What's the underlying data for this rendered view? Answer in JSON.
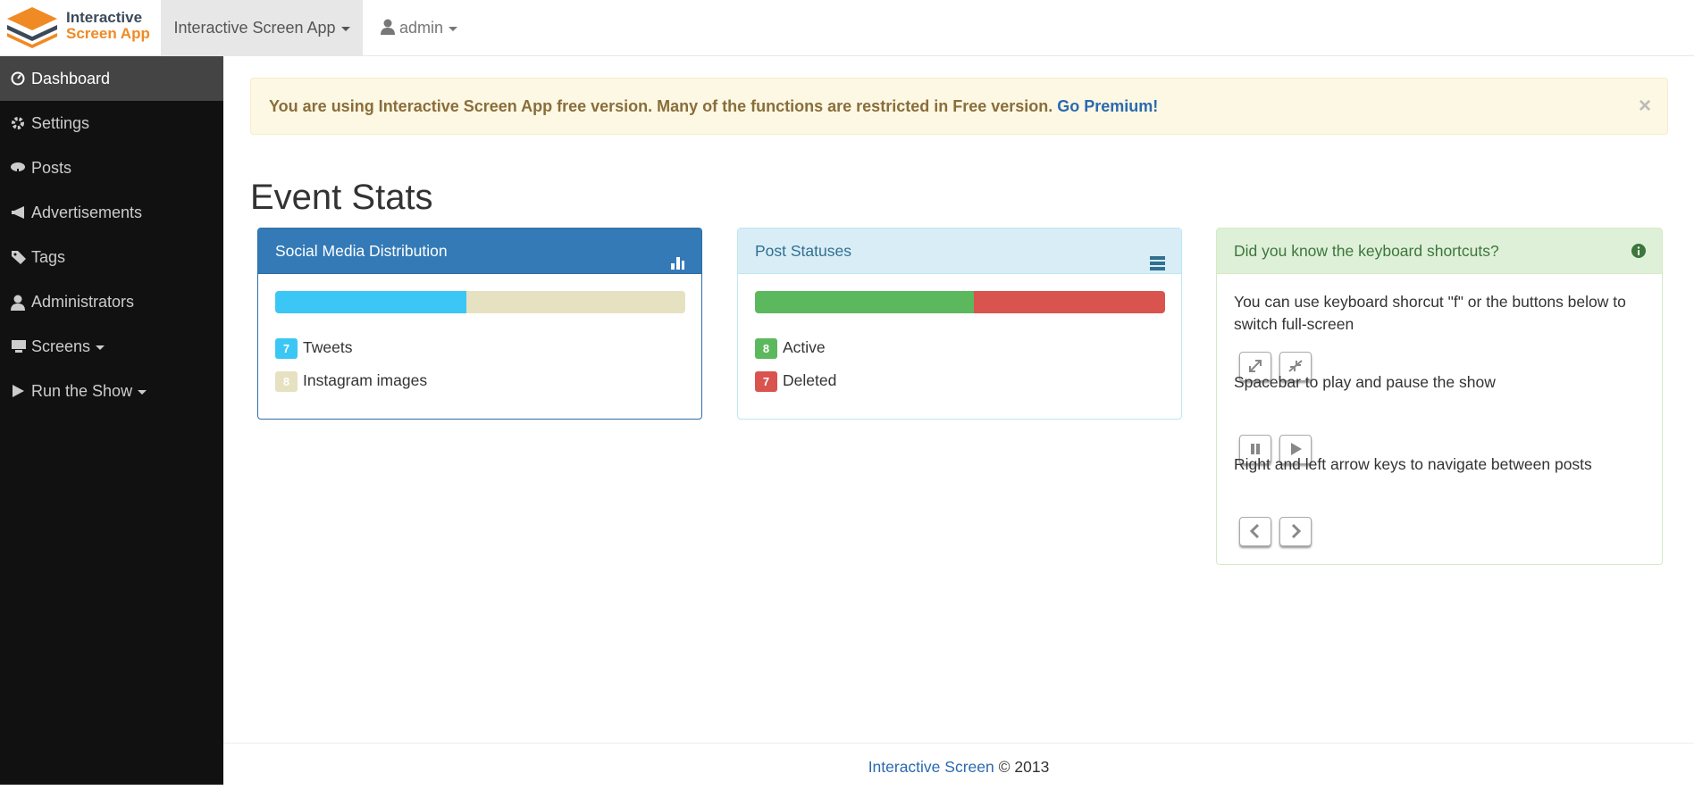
{
  "navbar": {
    "brand": {
      "line1": "Interactive",
      "line2": "Screen App"
    },
    "app_menu": "Interactive Screen App",
    "user_menu": "admin"
  },
  "sidebar": {
    "items": [
      "Dashboard",
      "Settings",
      "Posts",
      "Advertisements",
      "Tags",
      "Administrators",
      "Screens",
      "Run the Show"
    ]
  },
  "alert": {
    "text": "You are using Interactive Screen App free version. Many of the functions are restricted in Free version.",
    "link": "Go Premium!",
    "close": "×"
  },
  "page_title": "Event Stats",
  "panels": [
    {
      "title": "Social Media Distribution",
      "items": [
        {
          "count": 7,
          "label": "Tweets",
          "color": "#3ac7f5"
        },
        {
          "count": 8,
          "label": "Instagram images",
          "color": "#e6e1c1"
        }
      ]
    },
    {
      "title": "Post Statuses",
      "items": [
        {
          "count": 8,
          "label": "Active",
          "color": "#5cb85c"
        },
        {
          "count": 7,
          "label": "Deleted",
          "color": "#d9534f"
        }
      ]
    }
  ],
  "shortcuts": {
    "title": "Did you know the keyboard shortcuts?",
    "lines": [
      "You can use keyboard shorcut \"f\" or the buttons below to switch full-screen",
      "Spacebar to play and pause the show",
      "Right and left arrow keys to navigate between posts"
    ]
  },
  "footer": {
    "link": "Interactive Screen",
    "text": "© 2013"
  }
}
